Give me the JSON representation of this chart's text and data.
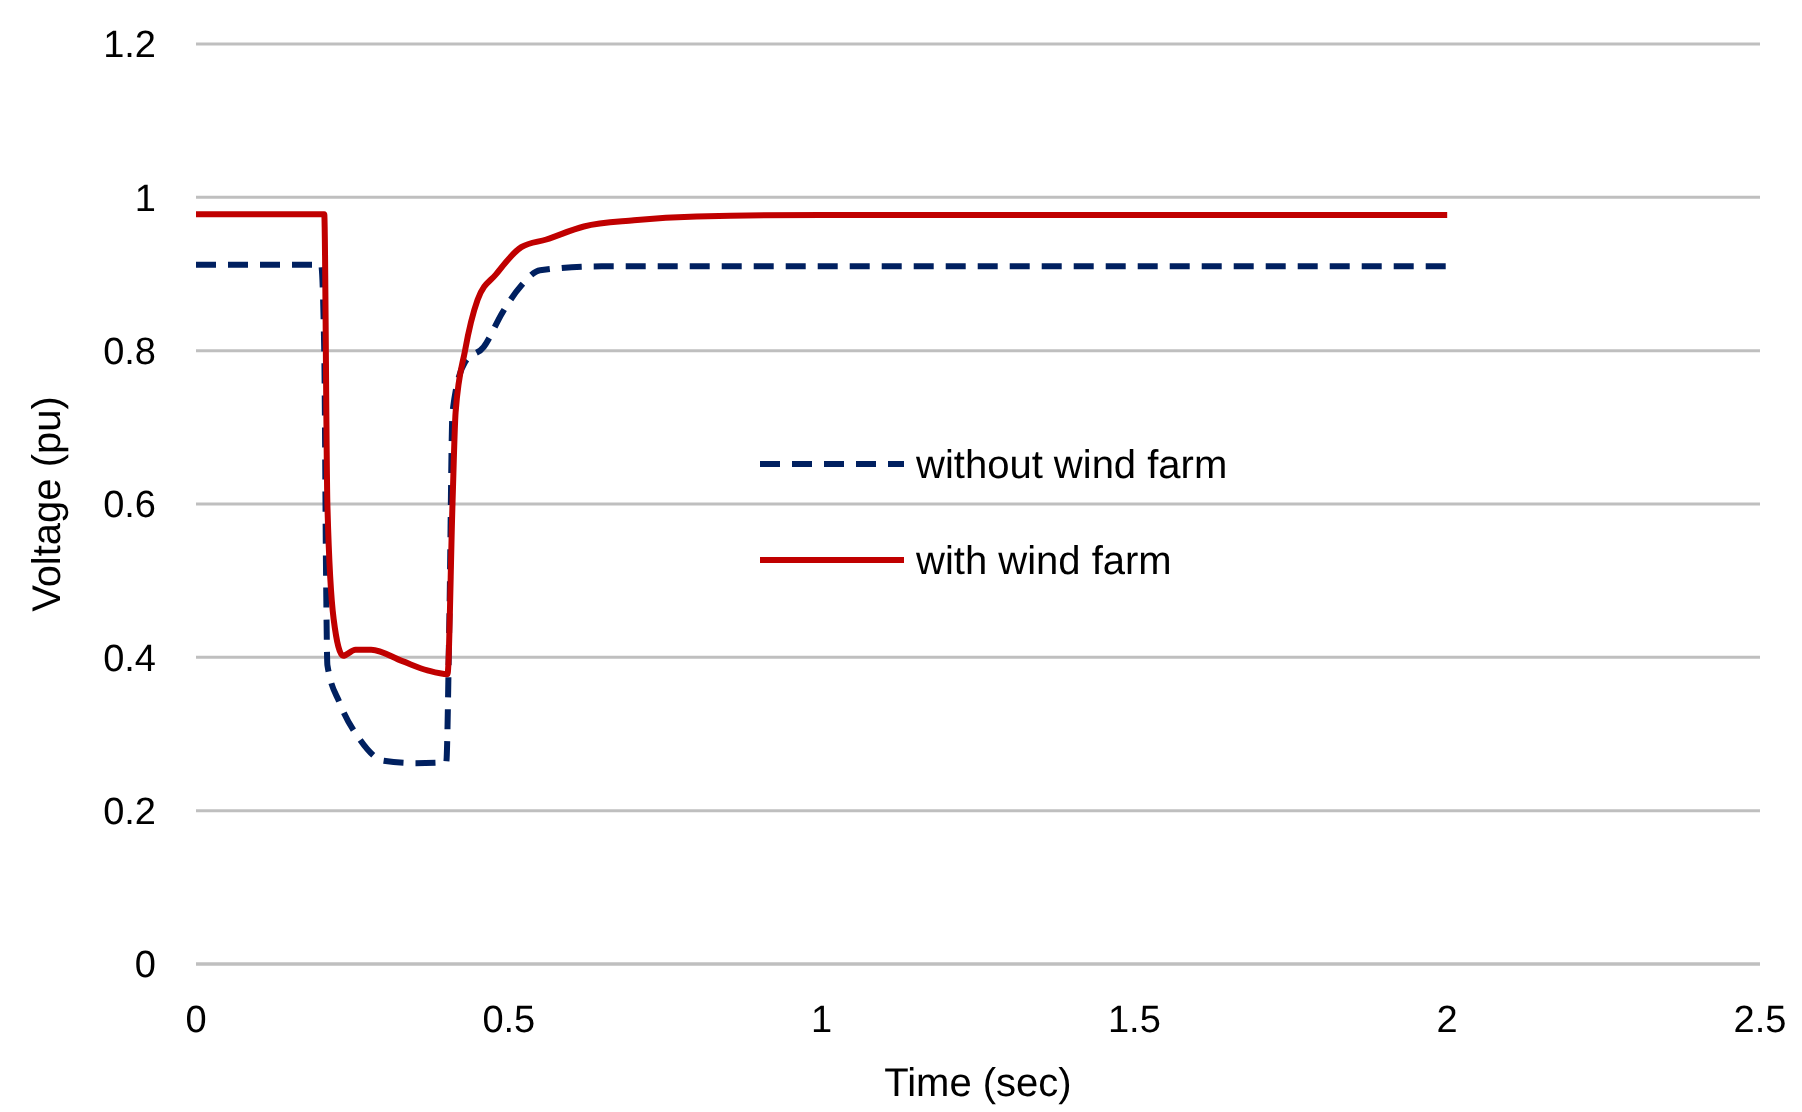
{
  "chart_data": {
    "type": "line",
    "xlabel": "Time (sec)",
    "ylabel": "Voltage (pu)",
    "xlim": [
      0,
      2.5
    ],
    "xticks": [
      0,
      0.5,
      1,
      1.5,
      2,
      2.5
    ],
    "ylim": [
      0,
      1.2
    ],
    "yticks": [
      0,
      0.2,
      0.4,
      0.6,
      0.8,
      1,
      1.2
    ],
    "grid": "y",
    "legend": "right",
    "marker": "none",
    "series": [
      {
        "name": "without wind farm",
        "color": "#002060",
        "line_style": "dashed",
        "x": [
          0,
          0.2,
          0.205,
          0.208,
          0.21,
          0.23,
          0.26,
          0.3,
          0.35,
          0.4,
          0.405,
          0.41,
          0.43,
          0.46,
          0.49,
          0.52,
          0.55,
          0.65,
          2
        ],
        "values": [
          0.912,
          0.912,
          0.8,
          0.5,
          0.39,
          0.34,
          0.295,
          0.265,
          0.262,
          0.263,
          0.45,
          0.72,
          0.785,
          0.805,
          0.85,
          0.885,
          0.905,
          0.91,
          0.91
        ]
      },
      {
        "name": "with wind farm",
        "color": "#c00000",
        "line_style": "solid",
        "x": [
          0,
          0.2,
          0.205,
          0.21,
          0.22,
          0.235,
          0.255,
          0.28,
          0.33,
          0.37,
          0.402,
          0.41,
          0.415,
          0.43,
          0.45,
          0.48,
          0.52,
          0.56,
          0.62,
          0.7,
          0.8,
          1,
          2
        ],
        "values": [
          0.978,
          0.978,
          0.978,
          0.6,
          0.45,
          0.402,
          0.41,
          0.41,
          0.395,
          0.383,
          0.378,
          0.6,
          0.72,
          0.8,
          0.866,
          0.9,
          0.935,
          0.945,
          0.962,
          0.97,
          0.975,
          0.977,
          0.977
        ]
      }
    ]
  }
}
